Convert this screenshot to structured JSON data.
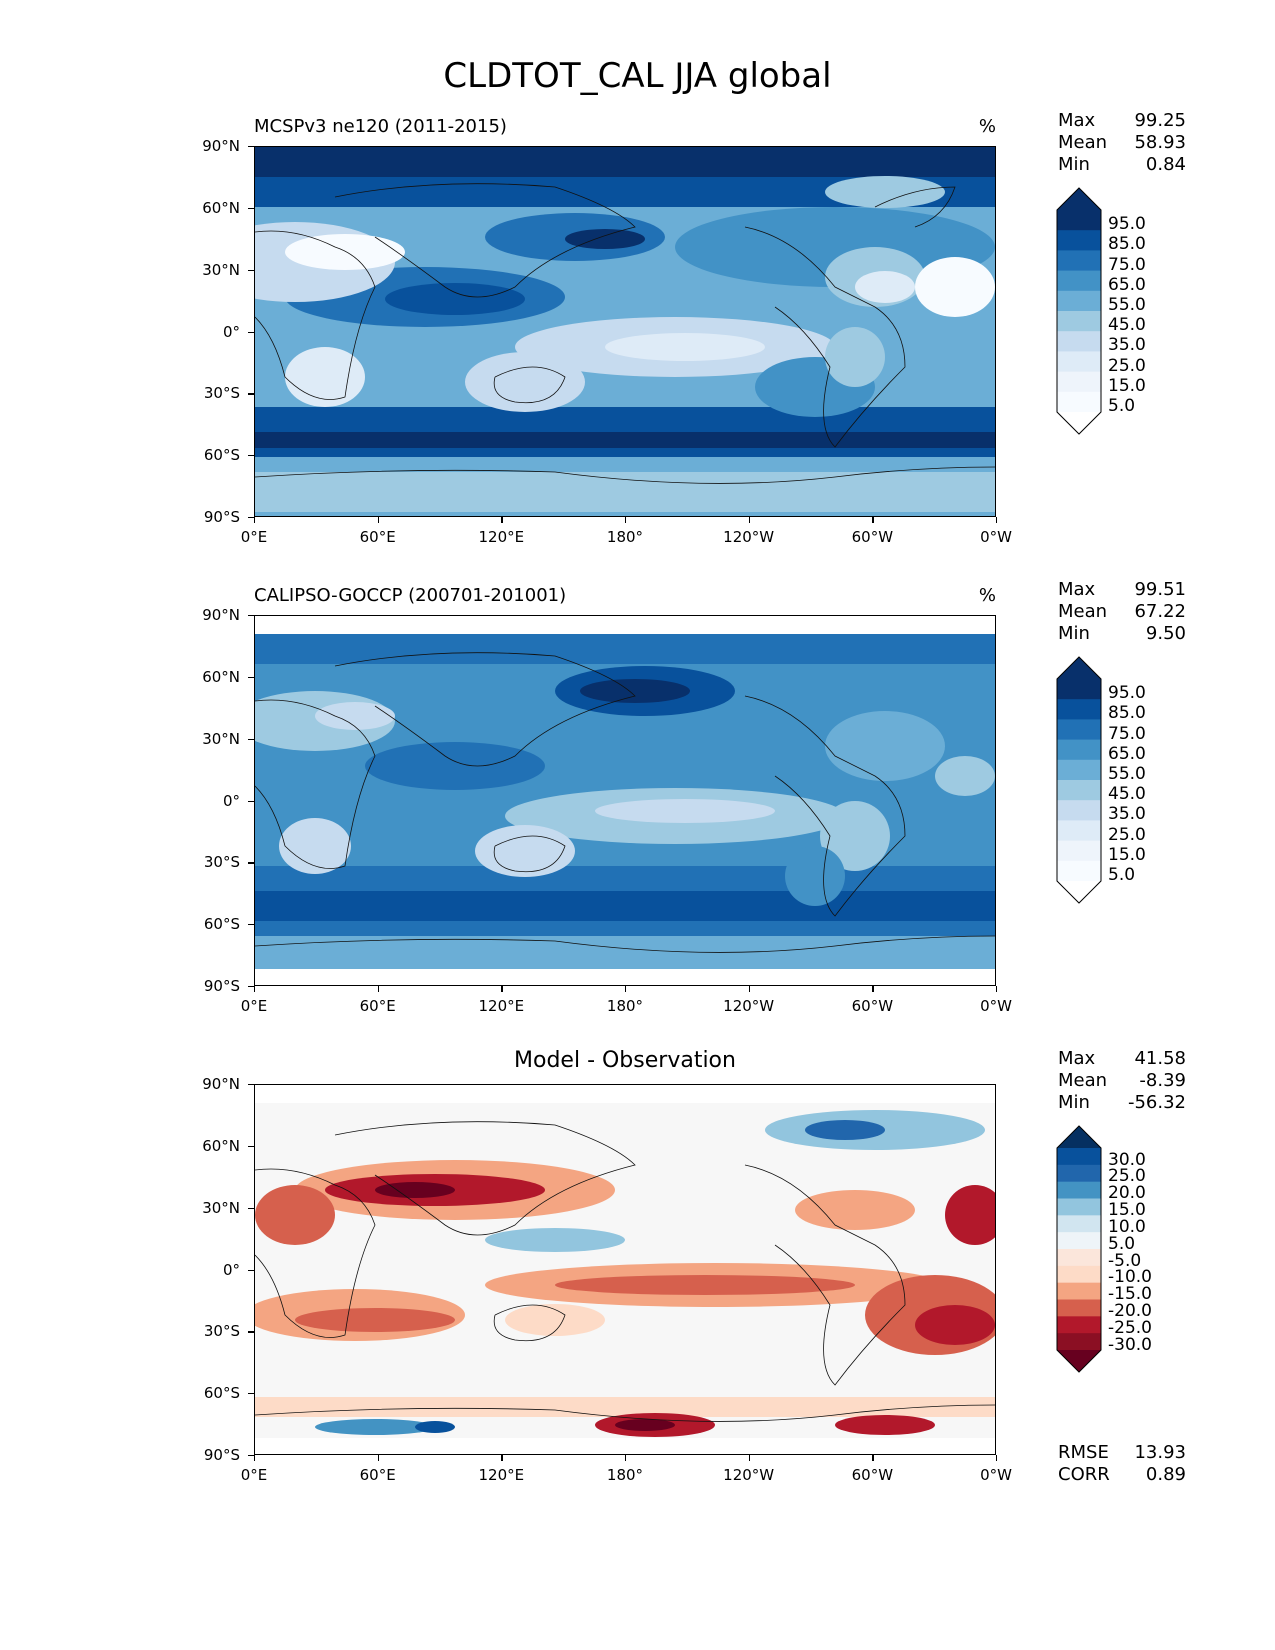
{
  "figure": {
    "title": "CLDTOT_CAL JJA global"
  },
  "axes": {
    "yticks": [
      "90°N",
      "60°N",
      "30°N",
      "0°",
      "30°S",
      "60°S",
      "90°S"
    ],
    "xticks": [
      "0°E",
      "60°E",
      "120°E",
      "180°",
      "120°W",
      "60°W",
      "0°W"
    ]
  },
  "panels": [
    {
      "title": "MCSPv3 ne120 (2011-2015)",
      "units": "%",
      "stats": [
        {
          "label": "Max",
          "value": "99.25"
        },
        {
          "label": "Mean",
          "value": "58.93"
        },
        {
          "label": "Min",
          "value": "0.84"
        }
      ],
      "colorbar": {
        "labels": [
          "95.0",
          "85.0",
          "75.0",
          "65.0",
          "55.0",
          "45.0",
          "35.0",
          "25.0",
          "15.0",
          "5.0"
        ],
        "colors": [
          "#08306b",
          "#08519c",
          "#2171b5",
          "#4292c6",
          "#6baed6",
          "#9ecae1",
          "#c6dbef",
          "#deebf7",
          "#eef4fb",
          "#f7fbff"
        ],
        "extend_top_color": "#08306b",
        "extend_bottom_color": "#ffffff"
      }
    },
    {
      "title": "CALIPSO-GOCCP (200701-201001)",
      "units": "%",
      "stats": [
        {
          "label": "Max",
          "value": "99.51"
        },
        {
          "label": "Mean",
          "value": "67.22"
        },
        {
          "label": "Min",
          "value": "9.50"
        }
      ],
      "colorbar": {
        "labels": [
          "95.0",
          "85.0",
          "75.0",
          "65.0",
          "55.0",
          "45.0",
          "35.0",
          "25.0",
          "15.0",
          "5.0"
        ],
        "colors": [
          "#08306b",
          "#08519c",
          "#2171b5",
          "#4292c6",
          "#6baed6",
          "#9ecae1",
          "#c6dbef",
          "#deebf7",
          "#eef4fb",
          "#f7fbff"
        ],
        "extend_top_color": "#08306b",
        "extend_bottom_color": "#ffffff"
      }
    },
    {
      "title": "Model - Observation",
      "units": "",
      "stats": [
        {
          "label": "Max",
          "value": "41.58"
        },
        {
          "label": "Mean",
          "value": "-8.39"
        },
        {
          "label": "Min",
          "value": "-56.32"
        }
      ],
      "extra_stats": [
        {
          "label": "RMSE",
          "value": "13.93"
        },
        {
          "label": "CORR",
          "value": "0.89"
        }
      ],
      "colorbar": {
        "labels": [
          "30.0",
          "25.0",
          "20.0",
          "15.0",
          "10.0",
          "5.0",
          "-5.0",
          "-10.0",
          "-15.0",
          "-20.0",
          "-25.0",
          "-30.0"
        ],
        "colors": [
          "#08519c",
          "#2166ac",
          "#4393c3",
          "#92c5de",
          "#d1e5f0",
          "#eef4f8",
          "#fbe6db",
          "#fddbc7",
          "#f4a582",
          "#d6604d",
          "#b2182b",
          "#8b0f23"
        ],
        "extend_top_color": "#053061",
        "extend_bottom_color": "#67001f"
      }
    }
  ]
}
